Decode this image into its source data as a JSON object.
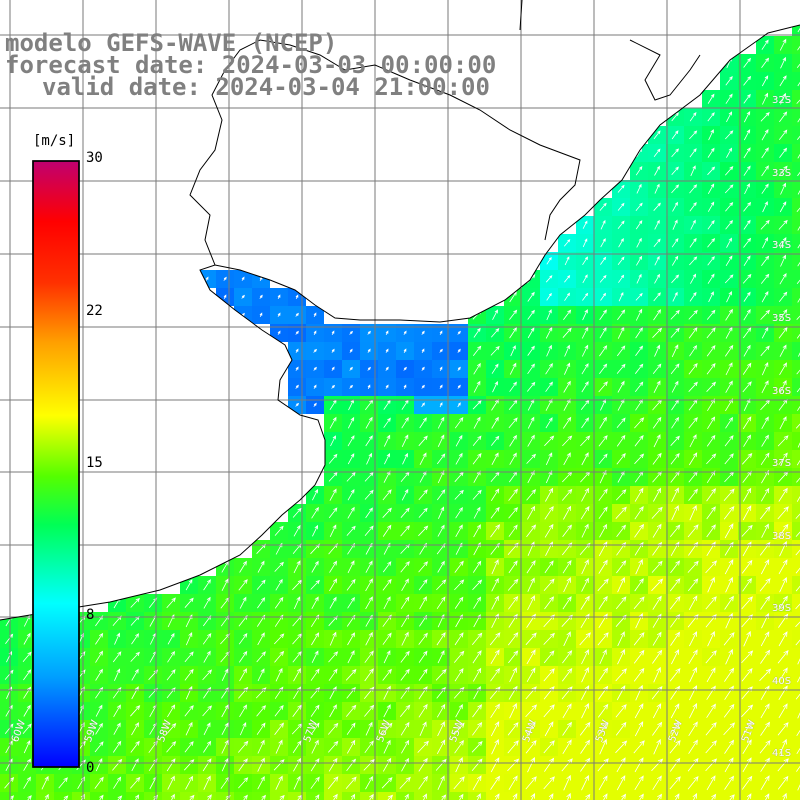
{
  "title": {
    "line1": "modelo GEFS-WAVE (NCEP)",
    "line2": "forecast date: 2024-03-03 00:00:00",
    "line3": "valid date: 2024-03-04 21:00:00"
  },
  "colorbar": {
    "unit": "[m/s]",
    "ticks": [
      {
        "label": "30",
        "value": 30
      },
      {
        "label": "22",
        "value": 22
      },
      {
        "label": "15",
        "value": 15
      },
      {
        "label": "8",
        "value": 8
      },
      {
        "label": "0",
        "value": 0
      }
    ],
    "vmin": 0,
    "vmax": 30,
    "colors": [
      "#0000ff",
      "#00a0ff",
      "#00ffff",
      "#00ff55",
      "#55ff00",
      "#ffff00",
      "#ffa000",
      "#ff3000",
      "#ff0000",
      "#c00060"
    ]
  },
  "axes": {
    "lat_labels": [
      "32S",
      "33S",
      "34S",
      "35S",
      "36S",
      "37S",
      "38S",
      "39S",
      "40S",
      "41S"
    ],
    "lon_labels": [
      "60W",
      "59W",
      "58W",
      "57W",
      "56W",
      "55W",
      "54W",
      "53W",
      "52W",
      "51W"
    ]
  },
  "colors": {
    "land": "#ffffff",
    "coast": "#000000",
    "grid": "#7a7a7a",
    "arrow": "#ffffff"
  }
}
